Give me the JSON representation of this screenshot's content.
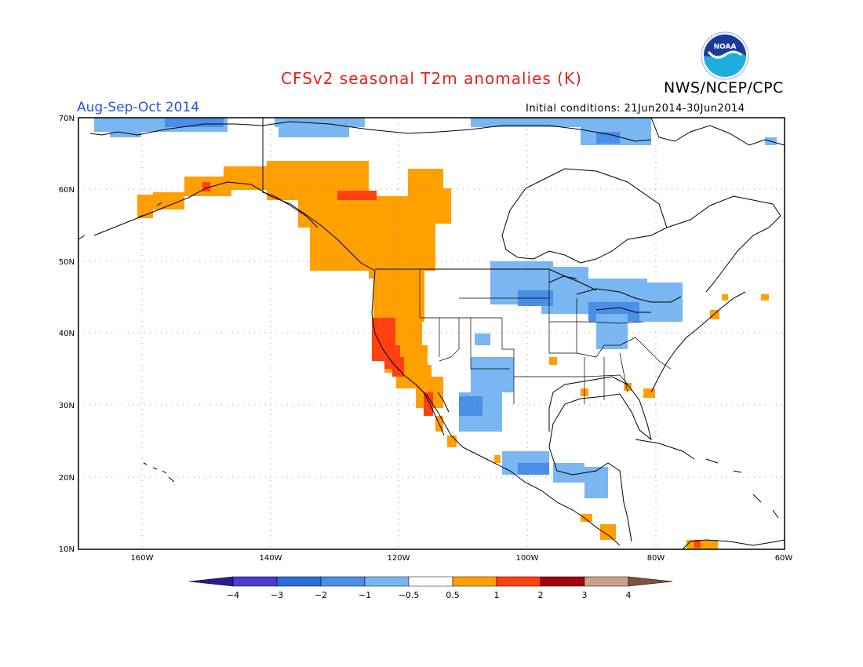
{
  "header": {
    "title": "CFSv2 seasonal T2m anomalies (K)",
    "period": "Aug-Sep-Oct 2014",
    "initial_conditions": "Initial conditions: 21Jun2014-30Jun2014",
    "agency": "NWS/NCEP/CPC",
    "logo_text": "NOAA"
  },
  "colors": {
    "title": "#e8201a",
    "period": "#2255dd",
    "frame": "#000000",
    "grid": "#9a9a9a",
    "coast": "#000000"
  },
  "map": {
    "x_ticks": [
      "160W",
      "140W",
      "120W",
      "100W",
      "80W",
      "60W"
    ],
    "y_ticks": [
      "70N",
      "60N",
      "50N",
      "40N",
      "30N",
      "20N",
      "10N"
    ]
  },
  "colorbar": {
    "labels": [
      "−4",
      "−3",
      "−2",
      "−1",
      "−0.5",
      "0.5",
      "1",
      "2",
      "3",
      "4"
    ],
    "colors": [
      "#2a1b8f",
      "#4b3fcf",
      "#2e6cd6",
      "#4a8ee8",
      "#79b6f2",
      "#ffffff",
      "#ffa000",
      "#ff4010",
      "#a00a0a",
      "#c9a08c",
      "#7d5340"
    ]
  }
}
